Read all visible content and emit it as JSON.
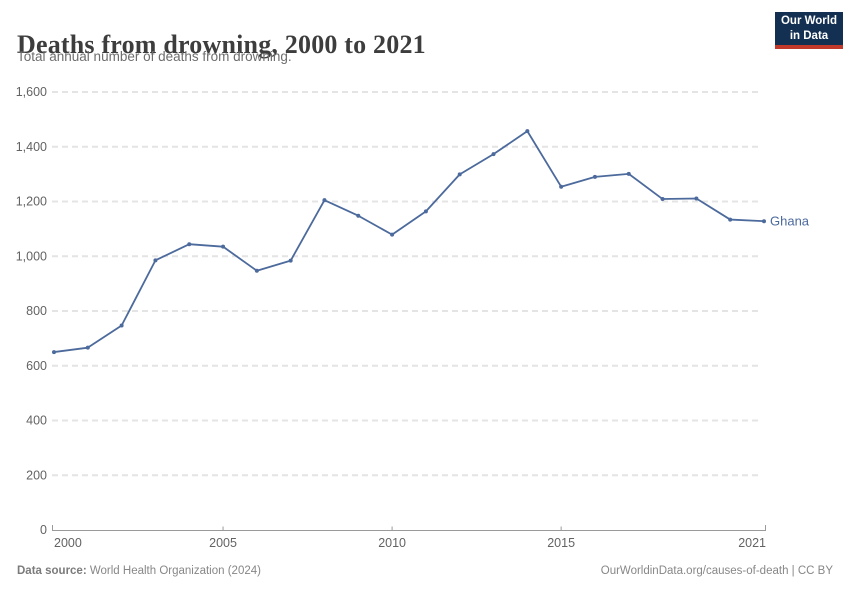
{
  "header": {
    "title": "Deaths from drowning, 2000 to 2021",
    "subtitle": "Total annual number of deaths from drowning.",
    "logo": {
      "line1": "Our World",
      "line2": "in Data",
      "bg_color": "#132f52",
      "accent_color": "#c0392b"
    }
  },
  "chart_data": {
    "type": "line",
    "title": "Deaths from drowning, 2000 to 2021",
    "xlabel": "",
    "ylabel": "",
    "x": [
      2000,
      2001,
      2002,
      2003,
      2004,
      2005,
      2006,
      2007,
      2008,
      2009,
      2010,
      2011,
      2012,
      2013,
      2014,
      2015,
      2016,
      2017,
      2018,
      2019,
      2020,
      2021
    ],
    "series": [
      {
        "name": "Ghana",
        "color": "#4c6a9c",
        "values": [
          650,
          666,
          747,
          985,
          1044,
          1035,
          947,
          984,
          1205,
          1148,
          1079,
          1164,
          1299,
          1373,
          1457,
          1254,
          1290,
          1301,
          1209,
          1211,
          1134,
          1128
        ]
      }
    ],
    "ylim": [
      0,
      1600
    ],
    "yticks": [
      0,
      200,
      400,
      600,
      800,
      1000,
      1200,
      1400,
      1600
    ],
    "xticks": [
      2000,
      2005,
      2010,
      2015,
      2021
    ],
    "grid": "horizontal-dashed",
    "legend_position": "end-of-line-label"
  },
  "footer": {
    "source_label": "Data source:",
    "source_text": " World Health Organization (2024)",
    "link_text": "OurWorldinData.org/causes-of-death | CC BY"
  }
}
